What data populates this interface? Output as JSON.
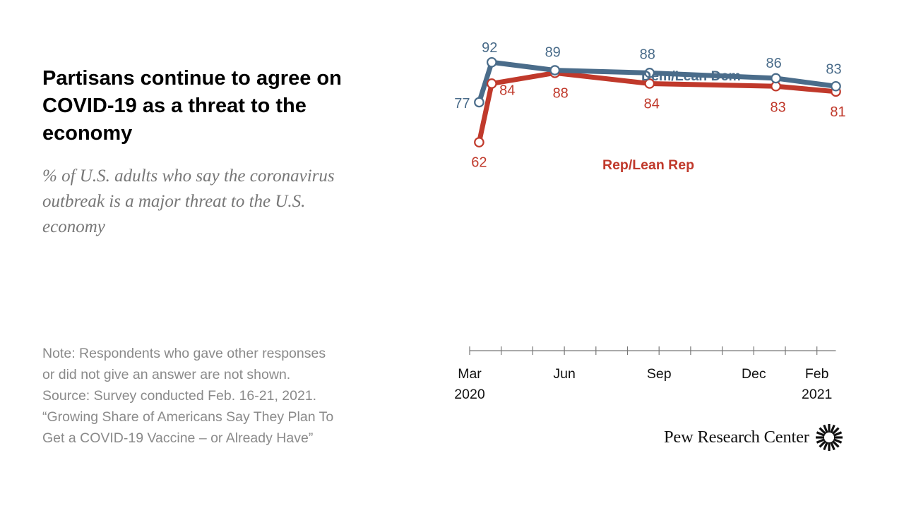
{
  "header": {
    "title": "Partisans continue to agree on COVID-19 as a threat to the economy",
    "subtitle": "% of U.S. adults who say the coronavirus outbreak is a major threat to the U.S. economy"
  },
  "notes": {
    "lines": [
      "Note: Respondents who gave other responses",
      "or did not give an answer are not shown.",
      "Source: Survey conducted Feb. 16-21, 2021.",
      "“Growing Share of Americans Say They Plan To",
      "Get a COVID-19 Vaccine – or Already Have”"
    ]
  },
  "brand": {
    "name": "Pew Research Center"
  },
  "colors": {
    "dem": "#4a6c8a",
    "rep": "#c0392b",
    "axis": "#777777"
  },
  "chart_data": {
    "type": "line",
    "title": "Partisans continue to agree on COVID-19 as a threat to the economy",
    "ylabel": "% of U.S. adults who say the coronavirus outbreak is a major threat to the U.S. economy",
    "x_months": [
      0.3,
      0.7,
      2.7,
      5.7,
      9.7,
      11.6
    ],
    "ylim": [
      55,
      100
    ],
    "xlim": [
      0,
      11.9
    ],
    "ticks": [
      {
        "month": 0,
        "label": "Mar",
        "year": "2020"
      },
      {
        "month": 3,
        "label": "Jun",
        "year": ""
      },
      {
        "month": 6,
        "label": "Sep",
        "year": ""
      },
      {
        "month": 9,
        "label": "Dec",
        "year": ""
      },
      {
        "month": 11,
        "label": "Feb",
        "year": "2021"
      }
    ],
    "series": [
      {
        "name": "Dem/Lean Dem",
        "values": [
          77,
          92,
          89,
          88,
          86,
          83
        ]
      },
      {
        "name": "Rep/Lean Rep",
        "values": [
          62,
          84,
          88,
          84,
          83,
          81
        ]
      }
    ]
  }
}
